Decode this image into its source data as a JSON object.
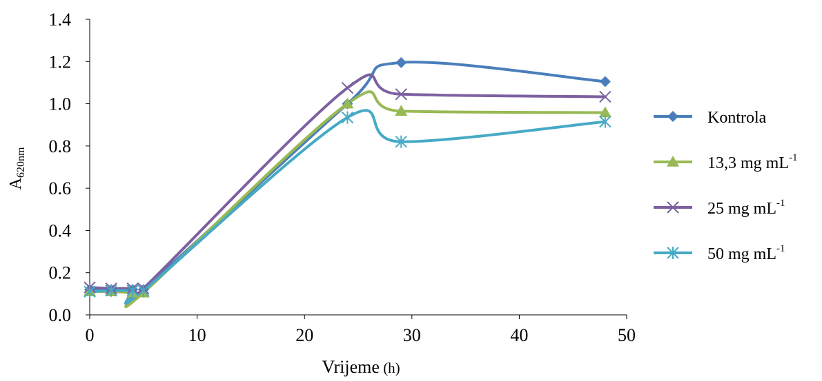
{
  "chart_data": {
    "type": "line",
    "title": "",
    "xlabel": "Vrijeme (h)",
    "ylabel": {
      "main": "A",
      "sub": "620nm"
    },
    "xlim": [
      0,
      50
    ],
    "ylim": [
      0.0,
      1.4
    ],
    "xticks": [
      0,
      10,
      20,
      30,
      40,
      50
    ],
    "yticks": [
      0.0,
      0.2,
      0.4,
      0.6,
      0.8,
      1.0,
      1.2,
      1.4
    ],
    "xtick_labels": [
      "0",
      "10",
      "20",
      "30",
      "40",
      "50"
    ],
    "ytick_labels": [
      "0.0",
      "0.2",
      "0.4",
      "0.6",
      "0.8",
      "1.0",
      "1.2",
      "1.4"
    ],
    "grid": false,
    "legend_position": "right",
    "x": [
      0,
      2,
      4,
      5,
      24,
      29,
      48
    ],
    "series": [
      {
        "name": "Kontrola",
        "unit_sup": "",
        "color": "#4a7ebb",
        "marker": "diamond",
        "values": [
          0.12,
          0.12,
          0.12,
          0.12,
          1.0,
          1.195,
          1.105
        ]
      },
      {
        "name": "13,3 mg mL",
        "unit_sup": "-1",
        "color": "#98b954",
        "marker": "triangle",
        "values": [
          0.11,
          0.11,
          0.105,
          0.105,
          1.0,
          0.965,
          0.958
        ]
      },
      {
        "name": "25 mg mL",
        "unit_sup": "-1",
        "color": "#7d60a0",
        "marker": "x",
        "values": [
          0.13,
          0.125,
          0.125,
          0.125,
          1.075,
          1.045,
          1.033
        ]
      },
      {
        "name": "50 mg mL",
        "unit_sup": "-1",
        "color": "#46aac5",
        "marker": "star",
        "values": [
          0.11,
          0.115,
          0.115,
          0.115,
          0.935,
          0.82,
          0.915
        ]
      }
    ]
  }
}
